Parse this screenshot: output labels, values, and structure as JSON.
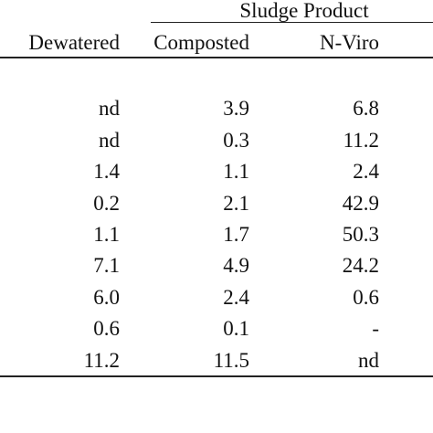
{
  "table": {
    "group_header": "Sludge Product",
    "columns": [
      "Dewatered",
      "Composted",
      "N-Viro"
    ],
    "rows": [
      [
        "nd",
        "3.9",
        "6.8"
      ],
      [
        "nd",
        "0.3",
        "11.2"
      ],
      [
        "1.4",
        "1.1",
        "2.4"
      ],
      [
        "0.2",
        "2.1",
        "42.9"
      ],
      [
        "1.1",
        "1.7",
        "50.3"
      ],
      [
        "7.1",
        "4.9",
        "24.2"
      ],
      [
        "6.0",
        "2.4",
        "0.6"
      ],
      [
        "0.6",
        "0.1",
        "-"
      ],
      [
        "11.2",
        "11.5",
        "nd"
      ]
    ]
  }
}
